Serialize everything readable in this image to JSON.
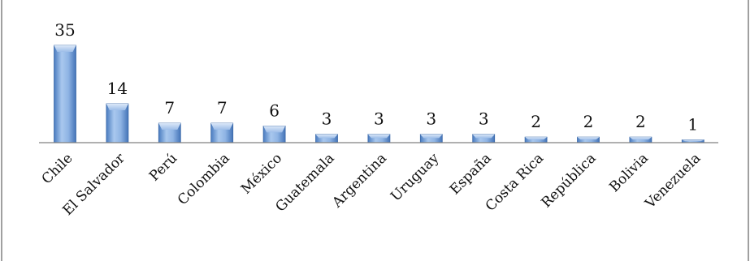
{
  "chart_data": {
    "type": "bar",
    "categories": [
      "Chile",
      "El Salvador",
      "Perú",
      "Colombia",
      "México",
      "Guatemala",
      "Argentina",
      "Uruguay",
      "España",
      "Costa Rica",
      "República",
      "Bolivia",
      "Venezuela"
    ],
    "values": [
      35,
      14,
      7,
      7,
      6,
      3,
      3,
      3,
      3,
      2,
      2,
      2,
      1
    ],
    "data_labels": [
      "35",
      "14",
      "7",
      "7",
      "6",
      "3",
      "3",
      "3",
      "3",
      "2",
      "2",
      "2",
      "1"
    ],
    "title": "",
    "xlabel": "",
    "ylabel": "",
    "ylim": [
      0,
      35
    ],
    "grid": false,
    "legend": "none",
    "bar_color": "#6e9bd8",
    "bar_highlight": "#c3d9f4",
    "axis_color": "#808080",
    "frame_color": "#808080"
  }
}
